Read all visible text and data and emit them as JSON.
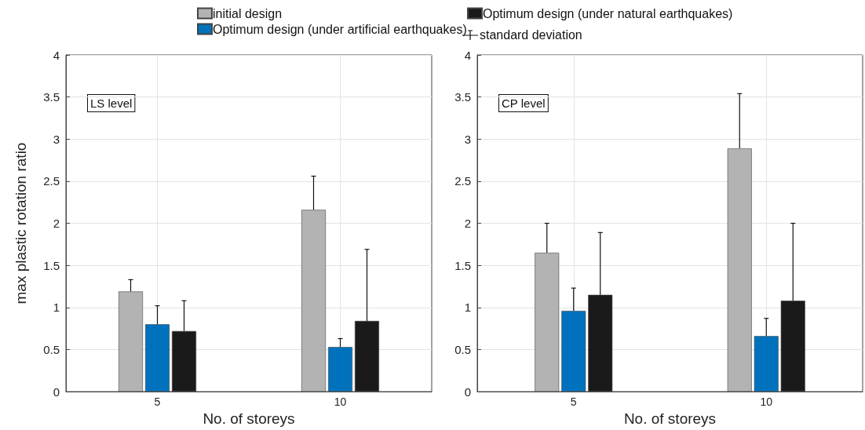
{
  "chart_data": [
    {
      "type": "bar",
      "xlabel": "No. of storeys",
      "ylabel": "max plastic rotation ratio",
      "categories": [
        "5",
        "10"
      ],
      "ylim": [
        0,
        4
      ],
      "yticks": [
        0,
        0.5,
        1,
        1.5,
        2,
        2.5,
        3,
        3.5,
        4
      ],
      "grid": true,
      "legend": "top",
      "annotations": [
        "LS level",
        "standard deviation"
      ],
      "series": [
        {
          "name": "initial design",
          "color": "#b3b3b3",
          "values": [
            1.19,
            2.16
          ],
          "errors": [
            [
              1.19,
              1.33
            ],
            [
              2.16,
              2.56
            ]
          ]
        },
        {
          "name": "Optimum design (under artificial earthquakes)",
          "color": "#0072bd",
          "values": [
            0.8,
            0.53
          ],
          "errors": [
            [
              0.8,
              1.02
            ],
            [
              0.53,
              0.63
            ]
          ]
        },
        {
          "name": "Optimum design (under natural earthquakes)",
          "color": "#1a1a1a",
          "values": [
            0.72,
            0.84
          ],
          "errors": [
            [
              0.72,
              1.08
            ],
            [
              0.84,
              1.69
            ]
          ]
        }
      ]
    },
    {
      "type": "bar",
      "xlabel": "No. of storeys",
      "categories": [
        "5",
        "10"
      ],
      "ylim": [
        0,
        4
      ],
      "yticks": [
        0,
        0.5,
        1,
        1.5,
        2,
        2.5,
        3,
        3.5,
        4
      ],
      "grid": true,
      "annotations": [
        "CP level"
      ],
      "series": [
        {
          "color": "#b3b3b3",
          "values": [
            1.65,
            2.89
          ],
          "errors": [
            [
              1.65,
              2.0
            ],
            [
              2.89,
              3.54
            ]
          ]
        },
        {
          "color": "#0072bd",
          "values": [
            0.96,
            0.66
          ],
          "errors": [
            [
              0.96,
              1.23
            ],
            [
              0.66,
              0.87
            ]
          ]
        },
        {
          "color": "#1a1a1a",
          "values": [
            1.15,
            1.08
          ],
          "errors": [
            [
              1.15,
              1.89
            ],
            [
              1.08,
              2.0
            ]
          ]
        }
      ]
    }
  ]
}
